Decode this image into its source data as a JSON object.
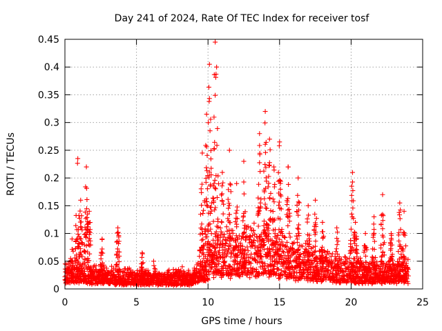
{
  "chart_data": {
    "type": "scatter",
    "title": "Day 241 of 2024, Rate Of TEC Index for receiver tosf",
    "xlabel": "GPS time / hours",
    "ylabel": "ROTI / TECUs",
    "xlim": [
      0,
      25
    ],
    "ylim": [
      0,
      0.45
    ],
    "grid": true,
    "legend": "none",
    "x_ticks": [
      0,
      5,
      10,
      15,
      20,
      25
    ],
    "x_tick_labels": [
      "0",
      "5",
      "10",
      "15",
      "20",
      "25"
    ],
    "y_ticks": [
      0,
      0.05,
      0.1,
      0.15,
      0.2,
      0.25,
      0.3,
      0.35,
      0.4,
      0.45
    ],
    "y_tick_labels": [
      "0",
      "0.05",
      "0.1",
      "0.15",
      "0.2",
      "0.25",
      "0.3",
      "0.35",
      "0.4",
      "0.45"
    ],
    "marker": "+",
    "series_color": "#ff0000",
    "series": [
      {
        "name": "ROTI",
        "peaks": [
          {
            "x": 0.5,
            "y": 0.09
          },
          {
            "x": 0.9,
            "y": 0.235
          },
          {
            "x": 1.1,
            "y": 0.16
          },
          {
            "x": 1.5,
            "y": 0.22
          },
          {
            "x": 1.7,
            "y": 0.14
          },
          {
            "x": 2.6,
            "y": 0.09
          },
          {
            "x": 3.7,
            "y": 0.11
          },
          {
            "x": 5.4,
            "y": 0.065
          },
          {
            "x": 6.2,
            "y": 0.05
          },
          {
            "x": 8.2,
            "y": 0.04
          },
          {
            "x": 9.6,
            "y": 0.245
          },
          {
            "x": 9.9,
            "y": 0.315
          },
          {
            "x": 10.1,
            "y": 0.405
          },
          {
            "x": 10.5,
            "y": 0.445
          },
          {
            "x": 10.6,
            "y": 0.4
          },
          {
            "x": 11.0,
            "y": 0.21
          },
          {
            "x": 11.5,
            "y": 0.25
          },
          {
            "x": 12.0,
            "y": 0.19
          },
          {
            "x": 12.5,
            "y": 0.23
          },
          {
            "x": 13.6,
            "y": 0.28
          },
          {
            "x": 14.0,
            "y": 0.32
          },
          {
            "x": 14.3,
            "y": 0.27
          },
          {
            "x": 14.6,
            "y": 0.22
          },
          {
            "x": 15.0,
            "y": 0.265
          },
          {
            "x": 15.6,
            "y": 0.22
          },
          {
            "x": 16.3,
            "y": 0.2
          },
          {
            "x": 17.0,
            "y": 0.15
          },
          {
            "x": 17.5,
            "y": 0.16
          },
          {
            "x": 18.0,
            "y": 0.12
          },
          {
            "x": 19.0,
            "y": 0.11
          },
          {
            "x": 20.1,
            "y": 0.21
          },
          {
            "x": 20.3,
            "y": 0.12
          },
          {
            "x": 21.0,
            "y": 0.1
          },
          {
            "x": 21.6,
            "y": 0.13
          },
          {
            "x": 22.2,
            "y": 0.17
          },
          {
            "x": 22.8,
            "y": 0.1
          },
          {
            "x": 23.4,
            "y": 0.155
          },
          {
            "x": 23.7,
            "y": 0.14
          }
        ],
        "background_level": [
          {
            "x": 0.0,
            "y": 0.025
          },
          {
            "x": 1.0,
            "y": 0.035
          },
          {
            "x": 2.0,
            "y": 0.025
          },
          {
            "x": 5.0,
            "y": 0.02
          },
          {
            "x": 9.0,
            "y": 0.02
          },
          {
            "x": 9.8,
            "y": 0.04
          },
          {
            "x": 10.5,
            "y": 0.07
          },
          {
            "x": 12.0,
            "y": 0.06
          },
          {
            "x": 14.0,
            "y": 0.07
          },
          {
            "x": 16.0,
            "y": 0.05
          },
          {
            "x": 19.0,
            "y": 0.035
          },
          {
            "x": 21.0,
            "y": 0.03
          },
          {
            "x": 24.0,
            "y": 0.03
          }
        ]
      }
    ]
  }
}
